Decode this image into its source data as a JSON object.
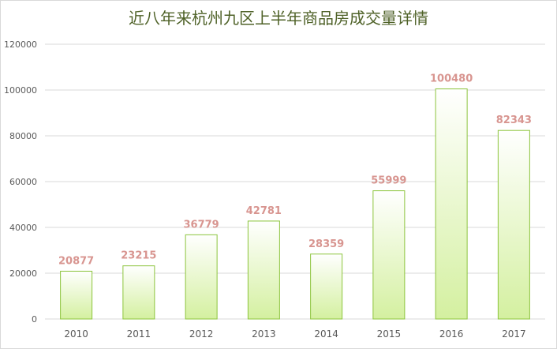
{
  "chart_data": {
    "type": "bar",
    "title": "近八年来杭州九区上半年商品房成交量详情",
    "categories": [
      "2010",
      "2011",
      "2012",
      "2013",
      "2014",
      "2015",
      "2016",
      "2017"
    ],
    "values": [
      20877,
      23215,
      36779,
      42781,
      28359,
      55999,
      100480,
      82343
    ],
    "data_labels": [
      "20877",
      "23215",
      "36779",
      "42781",
      "28359",
      "55999",
      "100480",
      "82343"
    ],
    "y_ticks": [
      "0",
      "20000",
      "40000",
      "60000",
      "80000",
      "100000",
      "120000"
    ],
    "ylim": [
      0,
      120000
    ],
    "grid": true,
    "legend": "none",
    "colors": {
      "bar_top": "#ffffff",
      "bar_bottom": "#d4f0a0",
      "bar_stroke": "#8cc43c",
      "label": "#d89590",
      "title": "#4f6228",
      "grid": "#d9d9d9",
      "tick_text": "#595959"
    }
  }
}
